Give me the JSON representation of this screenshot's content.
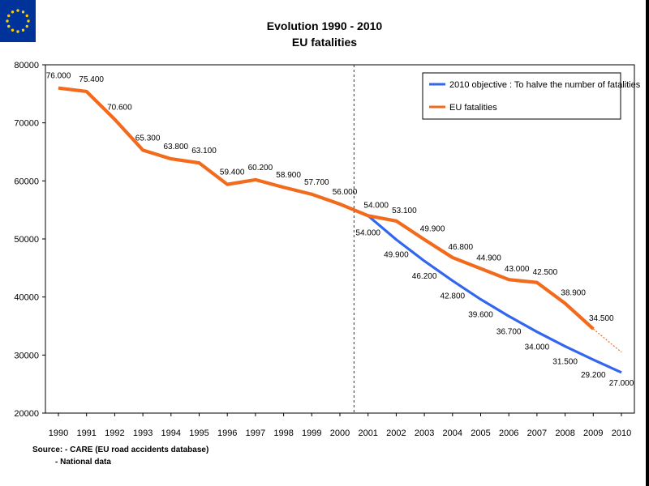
{
  "flag": {
    "name": "eu-flag",
    "color": "#003399",
    "star_color": "#FFCC00"
  },
  "chart_data": {
    "type": "line",
    "title": "Evolution 1990 - 2010",
    "subtitle": "EU fatalities",
    "ylim": [
      20000,
      80000
    ],
    "yticks": [
      "20000",
      "30000",
      "40000",
      "50000",
      "60000",
      "70000",
      "80000"
    ],
    "categories": [
      "1990",
      "1991",
      "1992",
      "1993",
      "1994",
      "1995",
      "1996",
      "1997",
      "1998",
      "1999",
      "2000",
      "2001",
      "2002",
      "2003",
      "2004",
      "2005",
      "2006",
      "2007",
      "2008",
      "2009",
      "2010"
    ],
    "divider_after": "2000",
    "series": [
      {
        "name": "2010 objective : To halve the number of fatalities",
        "color": "#3366EE",
        "x": [
          "2001",
          "2002",
          "2003",
          "2004",
          "2005",
          "2006",
          "2007",
          "2008",
          "2009",
          "2010"
        ],
        "values": [
          54000,
          49900,
          46200,
          42800,
          39600,
          36700,
          34000,
          31500,
          29200,
          27000
        ],
        "labels": [
          "54.000",
          "49.900",
          "46.200",
          "42.800",
          "39.600",
          "36.700",
          "34.000",
          "31.500",
          "29.200",
          "27.000"
        ]
      },
      {
        "name": "EU fatalities",
        "color": "#F26A1B",
        "x": [
          "1990",
          "1991",
          "1992",
          "1993",
          "1994",
          "1995",
          "1996",
          "1997",
          "1998",
          "1999",
          "2000",
          "2001",
          "2002",
          "2003",
          "2004",
          "2005",
          "2006",
          "2007",
          "2008",
          "2009"
        ],
        "values": [
          76000,
          75400,
          70600,
          65300,
          63800,
          63100,
          59400,
          60200,
          58900,
          57700,
          56000,
          54000,
          53100,
          49900,
          46800,
          44900,
          43000,
          42500,
          38900,
          34500
        ],
        "labels": [
          "76.000",
          "75.400",
          "70.600",
          "65.300",
          "63.800",
          "63.100",
          "59.400",
          "60.200",
          "58.900",
          "57.700",
          "56.000",
          "54.000",
          "53.100",
          "49.900",
          "46.800",
          "44.900",
          "43.000",
          "42.500",
          "38.900",
          "34.500"
        ],
        "trend_to": {
          "x": "2010",
          "value": 30500
        }
      }
    ],
    "legend_position": "top-right"
  },
  "source": {
    "line1": "Source: - CARE (EU road accidents database)",
    "line2": "- National data"
  }
}
